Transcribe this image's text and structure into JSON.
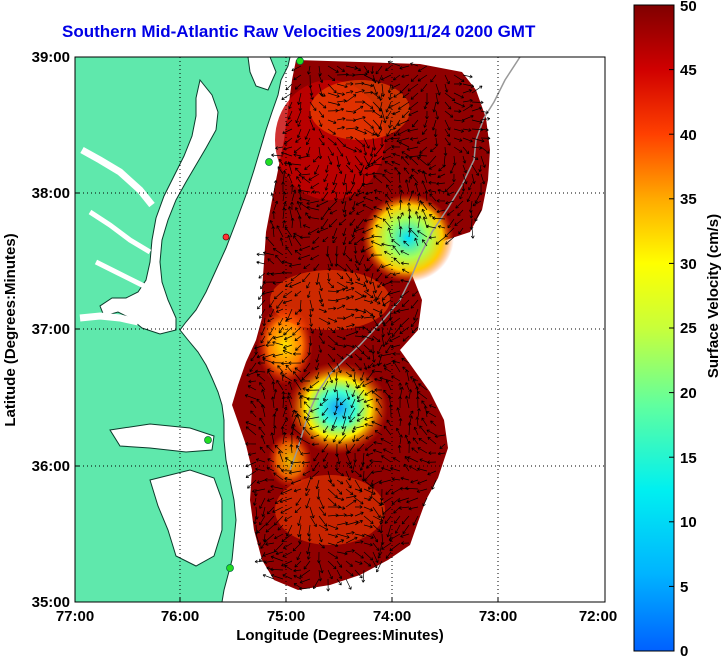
{
  "title": "Southern Mid-Atlantic Raw Velocities 2009/11/24 0200 GMT",
  "x_axis": {
    "label": "Longitude (Degrees:Minutes)",
    "ticks": [
      "77:00",
      "76:00",
      "75:00",
      "74:00",
      "73:00",
      "72:00"
    ]
  },
  "y_axis": {
    "label": "Latitude (Degrees:Minutes)",
    "ticks": [
      "39:00",
      "38:00",
      "37:00",
      "36:00",
      "35:00"
    ]
  },
  "colorbar": {
    "label": "Surface Velocity (cm/s)",
    "ticks": [
      "50",
      "45",
      "40",
      "35",
      "30",
      "25",
      "20",
      "15",
      "10",
      "5",
      "0"
    ],
    "min": 0,
    "max": 50
  },
  "colors": {
    "title": "#0000e6",
    "land": "#5fe8ac",
    "water": "#ffffff",
    "high_speed": "#8b0000",
    "low_speed": "#0066ff"
  },
  "map_extent": {
    "lon_min": -77,
    "lon_max": -72,
    "lat_min": 35,
    "lat_max": 39
  }
}
